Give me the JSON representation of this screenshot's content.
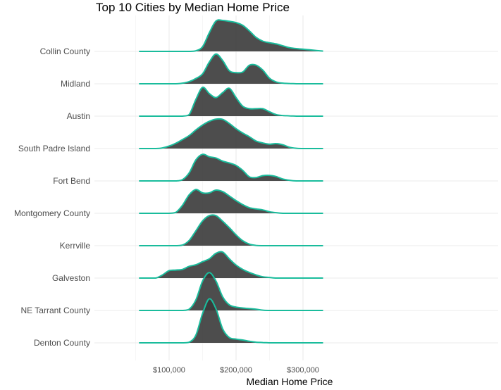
{
  "chart_data": {
    "type": "ridgeline",
    "title": "Top 10 Cities by Median Home Price",
    "xlabel": "Median Home Price",
    "ylabel": "",
    "xlim": [
      40000,
      345000
    ],
    "x_ticks": [
      {
        "value": 100000,
        "label": "$100,000"
      },
      {
        "value": 200000,
        "label": "$200,000"
      },
      {
        "value": 300000,
        "label": "$300,000"
      }
    ],
    "grid": true,
    "fill_color": "#3a3a3a",
    "line_color": "#1abc9c",
    "x_grid": [
      40000,
      50000,
      60000,
      70000,
      80000,
      90000,
      100000,
      110000,
      120000,
      130000,
      140000,
      150000,
      160000,
      170000,
      180000,
      190000,
      200000,
      210000,
      220000,
      230000,
      240000,
      250000,
      260000,
      270000,
      280000,
      290000,
      300000,
      310000,
      320000,
      330000,
      340000
    ],
    "series": [
      {
        "name": "Collin County",
        "x_range": [
          55000,
          330000
        ],
        "density": [
          0,
          0,
          0,
          0,
          0,
          0,
          0,
          0,
          0,
          0,
          0.02,
          0.15,
          0.6,
          0.98,
          1.0,
          0.97,
          0.93,
          0.84,
          0.66,
          0.45,
          0.33,
          0.28,
          0.24,
          0.18,
          0.12,
          0.09,
          0.07,
          0.05,
          0.03,
          0.01,
          0
        ]
      },
      {
        "name": "Midland",
        "x_range": [
          55000,
          330000
        ],
        "density": [
          0,
          0,
          0,
          0,
          0,
          0,
          0,
          0,
          0.02,
          0.07,
          0.17,
          0.32,
          0.7,
          0.96,
          0.75,
          0.42,
          0.36,
          0.38,
          0.6,
          0.6,
          0.44,
          0.18,
          0.06,
          0.02,
          0.01,
          0,
          0,
          0,
          0,
          0,
          0
        ]
      },
      {
        "name": "Austin",
        "x_range": [
          55000,
          330000
        ],
        "density": [
          0,
          0,
          0,
          0,
          0,
          0,
          0,
          0,
          0,
          0.05,
          0.54,
          0.93,
          0.73,
          0.6,
          0.76,
          0.9,
          0.6,
          0.32,
          0.24,
          0.24,
          0.24,
          0.14,
          0.05,
          0.02,
          0.01,
          0,
          0,
          0,
          0,
          0,
          0
        ]
      },
      {
        "name": "South Padre Island",
        "x_range": [
          55000,
          330000
        ],
        "density": [
          0,
          0,
          0,
          0,
          0,
          0.02,
          0.08,
          0.17,
          0.29,
          0.42,
          0.6,
          0.76,
          0.88,
          0.95,
          0.94,
          0.81,
          0.64,
          0.5,
          0.38,
          0.24,
          0.18,
          0.14,
          0.16,
          0.12,
          0.04,
          0.01,
          0,
          0,
          0,
          0,
          0
        ]
      },
      {
        "name": "Fort Bend",
        "x_range": [
          55000,
          330000
        ],
        "density": [
          0,
          0,
          0,
          0,
          0,
          0,
          0,
          0,
          0.04,
          0.26,
          0.68,
          0.86,
          0.78,
          0.74,
          0.64,
          0.58,
          0.5,
          0.34,
          0.13,
          0.11,
          0.17,
          0.18,
          0.14,
          0.06,
          0.02,
          0,
          0,
          0,
          0,
          0,
          0
        ]
      },
      {
        "name": "Montgomery County",
        "x_range": [
          55000,
          330000
        ],
        "density": [
          0,
          0,
          0,
          0,
          0,
          0,
          0,
          0.03,
          0.26,
          0.6,
          0.77,
          0.66,
          0.66,
          0.75,
          0.7,
          0.56,
          0.41,
          0.28,
          0.18,
          0.14,
          0.11,
          0.05,
          0.02,
          0,
          0,
          0,
          0,
          0,
          0,
          0,
          0
        ]
      },
      {
        "name": "Kerrville",
        "x_range": [
          55000,
          330000
        ],
        "density": [
          0,
          0,
          0,
          0,
          0,
          0,
          0,
          0,
          0.02,
          0.17,
          0.48,
          0.8,
          0.97,
          0.97,
          0.79,
          0.58,
          0.35,
          0.16,
          0.05,
          0.01,
          0,
          0,
          0,
          0,
          0,
          0,
          0,
          0,
          0,
          0,
          0
        ]
      },
      {
        "name": "Galveston",
        "x_range": [
          55000,
          330000
        ],
        "density": [
          0,
          0,
          0,
          0,
          0,
          0.1,
          0.24,
          0.26,
          0.28,
          0.38,
          0.43,
          0.53,
          0.62,
          0.8,
          0.84,
          0.62,
          0.42,
          0.28,
          0.18,
          0.1,
          0.04,
          0.02,
          0,
          0,
          0,
          0,
          0,
          0,
          0,
          0,
          0
        ]
      },
      {
        "name": "NE Tarrant County",
        "x_range": [
          55000,
          330000
        ],
        "density": [
          0,
          0,
          0,
          0,
          0,
          0,
          0,
          0,
          0,
          0.04,
          0.34,
          0.95,
          1.22,
          0.95,
          0.44,
          0.18,
          0.11,
          0.08,
          0.06,
          0.04,
          0.01,
          0,
          0,
          0,
          0,
          0,
          0,
          0,
          0,
          0,
          0
        ]
      },
      {
        "name": "Denton County",
        "x_range": [
          55000,
          330000
        ],
        "density": [
          0,
          0,
          0,
          0,
          0,
          0,
          0,
          0,
          0,
          0.02,
          0.25,
          0.95,
          1.42,
          1.1,
          0.45,
          0.17,
          0.12,
          0.09,
          0.05,
          0.02,
          0.01,
          0,
          0,
          0,
          0,
          0,
          0,
          0,
          0,
          0,
          0
        ]
      }
    ]
  }
}
